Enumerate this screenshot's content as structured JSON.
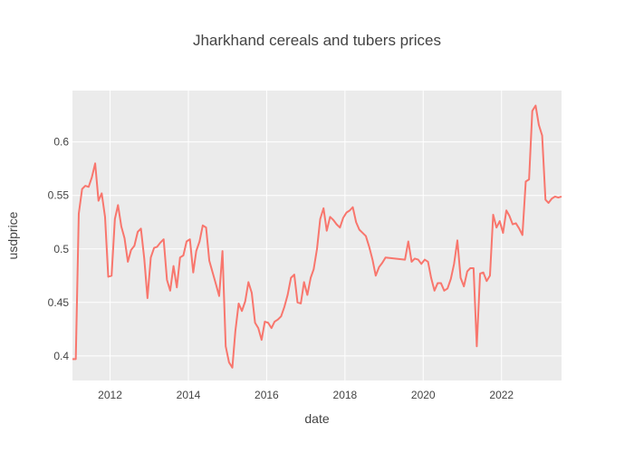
{
  "chart_data": {
    "type": "line",
    "title": "Jharkhand cereals and tubers prices",
    "xlabel": "date",
    "ylabel": "usdprice",
    "xlim": [
      "2011-01-15",
      "2023-07-15"
    ],
    "ylim": [
      0.377,
      0.648
    ],
    "x_ticks": [
      {
        "label": "2012",
        "date": "2012-01-01"
      },
      {
        "label": "2014",
        "date": "2014-01-01"
      },
      {
        "label": "2016",
        "date": "2016-01-01"
      },
      {
        "label": "2018",
        "date": "2018-01-01"
      },
      {
        "label": "2020",
        "date": "2020-01-01"
      },
      {
        "label": "2022",
        "date": "2022-01-01"
      }
    ],
    "y_ticks": [
      {
        "label": "0.4",
        "value": 0.4
      },
      {
        "label": "0.45",
        "value": 0.45
      },
      {
        "label": "0.5",
        "value": 0.5
      },
      {
        "label": "0.55",
        "value": 0.55
      },
      {
        "label": "0.6",
        "value": 0.6
      }
    ],
    "grid": true,
    "background": "#ebebeb",
    "line_color": "#f8766d",
    "series": [
      {
        "points": [
          [
            "2011-01-15",
            0.397
          ],
          [
            "2011-02-15",
            0.397
          ],
          [
            "2011-03-15",
            0.533
          ],
          [
            "2011-04-15",
            0.556
          ],
          [
            "2011-05-15",
            0.559
          ],
          [
            "2011-06-15",
            0.558
          ],
          [
            "2011-07-15",
            0.567
          ],
          [
            "2011-08-15",
            0.58
          ],
          [
            "2011-09-15",
            0.545
          ],
          [
            "2011-10-15",
            0.552
          ],
          [
            "2011-11-15",
            0.53
          ],
          [
            "2011-12-15",
            0.474
          ],
          [
            "2012-01-15",
            0.475
          ],
          [
            "2012-02-15",
            0.528
          ],
          [
            "2012-03-15",
            0.541
          ],
          [
            "2012-04-15",
            0.521
          ],
          [
            "2012-05-15",
            0.51
          ],
          [
            "2012-06-15",
            0.488
          ],
          [
            "2012-07-15",
            0.499
          ],
          [
            "2012-08-15",
            0.503
          ],
          [
            "2012-09-15",
            0.516
          ],
          [
            "2012-10-15",
            0.519
          ],
          [
            "2012-11-15",
            0.491
          ],
          [
            "2012-12-15",
            0.454
          ],
          [
            "2013-01-15",
            0.492
          ],
          [
            "2013-02-15",
            0.501
          ],
          [
            "2013-03-15",
            0.502
          ],
          [
            "2013-04-15",
            0.506
          ],
          [
            "2013-05-15",
            0.509
          ],
          [
            "2013-06-15",
            0.471
          ],
          [
            "2013-07-15",
            0.461
          ],
          [
            "2013-08-15",
            0.484
          ],
          [
            "2013-09-15",
            0.464
          ],
          [
            "2013-10-15",
            0.492
          ],
          [
            "2013-11-15",
            0.494
          ],
          [
            "2013-12-15",
            0.507
          ],
          [
            "2014-01-15",
            0.509
          ],
          [
            "2014-02-15",
            0.478
          ],
          [
            "2014-03-15",
            0.498
          ],
          [
            "2014-04-15",
            0.507
          ],
          [
            "2014-05-15",
            0.522
          ],
          [
            "2014-06-15",
            0.52
          ],
          [
            "2014-07-15",
            0.489
          ],
          [
            "2014-08-15",
            0.478
          ],
          [
            "2014-09-15",
            0.467
          ],
          [
            "2014-10-15",
            0.456
          ],
          [
            "2014-11-15",
            0.498
          ],
          [
            "2014-12-15",
            0.409
          ],
          [
            "2015-01-15",
            0.394
          ],
          [
            "2015-02-15",
            0.389
          ],
          [
            "2015-03-15",
            0.423
          ],
          [
            "2015-04-15",
            0.449
          ],
          [
            "2015-05-15",
            0.442
          ],
          [
            "2015-06-15",
            0.451
          ],
          [
            "2015-07-15",
            0.469
          ],
          [
            "2015-08-15",
            0.459
          ],
          [
            "2015-09-15",
            0.431
          ],
          [
            "2015-10-15",
            0.426
          ],
          [
            "2015-11-15",
            0.415
          ],
          [
            "2015-12-15",
            0.432
          ],
          [
            "2016-01-15",
            0.431
          ],
          [
            "2016-02-15",
            0.426
          ],
          [
            "2016-03-15",
            0.432
          ],
          [
            "2016-04-15",
            0.434
          ],
          [
            "2016-05-15",
            0.437
          ],
          [
            "2016-06-15",
            0.446
          ],
          [
            "2016-07-15",
            0.457
          ],
          [
            "2016-08-15",
            0.473
          ],
          [
            "2016-09-15",
            0.476
          ],
          [
            "2016-10-15",
            0.45
          ],
          [
            "2016-11-15",
            0.449
          ],
          [
            "2016-12-15",
            0.469
          ],
          [
            "2017-01-15",
            0.457
          ],
          [
            "2017-02-15",
            0.473
          ],
          [
            "2017-03-15",
            0.481
          ],
          [
            "2017-04-15",
            0.5
          ],
          [
            "2017-05-15",
            0.528
          ],
          [
            "2017-06-15",
            0.538
          ],
          [
            "2017-07-15",
            0.517
          ],
          [
            "2017-08-15",
            0.53
          ],
          [
            "2017-09-15",
            0.527
          ],
          [
            "2017-10-15",
            0.523
          ],
          [
            "2017-11-15",
            0.52
          ],
          [
            "2017-12-15",
            0.529
          ],
          [
            "2018-01-15",
            0.534
          ],
          [
            "2018-02-15",
            0.536
          ],
          [
            "2018-03-15",
            0.539
          ],
          [
            "2018-04-15",
            0.525
          ],
          [
            "2018-05-15",
            0.518
          ],
          [
            "2018-06-15",
            0.515
          ],
          [
            "2018-07-15",
            0.512
          ],
          [
            "2018-08-15",
            0.502
          ],
          [
            "2018-09-15",
            0.49
          ],
          [
            "2018-10-15",
            0.475
          ],
          [
            "2018-11-15",
            0.483
          ],
          [
            "2018-12-15",
            0.487
          ],
          [
            "2019-01-15",
            0.492
          ],
          [
            "2019-07-15",
            0.49
          ],
          [
            "2019-08-15",
            0.507
          ],
          [
            "2019-09-15",
            0.488
          ],
          [
            "2019-10-15",
            0.491
          ],
          [
            "2019-11-15",
            0.49
          ],
          [
            "2019-12-15",
            0.486
          ],
          [
            "2020-01-15",
            0.49
          ],
          [
            "2020-02-15",
            0.488
          ],
          [
            "2020-03-15",
            0.473
          ],
          [
            "2020-04-15",
            0.461
          ],
          [
            "2020-05-15",
            0.468
          ],
          [
            "2020-06-15",
            0.468
          ],
          [
            "2020-07-15",
            0.461
          ],
          [
            "2020-08-15",
            0.463
          ],
          [
            "2020-09-15",
            0.472
          ],
          [
            "2020-10-15",
            0.486
          ],
          [
            "2020-11-15",
            0.508
          ],
          [
            "2020-12-15",
            0.473
          ],
          [
            "2021-01-15",
            0.465
          ],
          [
            "2021-02-15",
            0.479
          ],
          [
            "2021-03-15",
            0.482
          ],
          [
            "2021-04-15",
            0.482
          ],
          [
            "2021-05-15",
            0.409
          ],
          [
            "2021-06-15",
            0.477
          ],
          [
            "2021-07-15",
            0.478
          ],
          [
            "2021-08-15",
            0.47
          ],
          [
            "2021-09-15",
            0.475
          ],
          [
            "2021-10-15",
            0.532
          ],
          [
            "2021-11-15",
            0.52
          ],
          [
            "2021-12-15",
            0.526
          ],
          [
            "2022-01-15",
            0.515
          ],
          [
            "2022-02-15",
            0.536
          ],
          [
            "2022-03-15",
            0.531
          ],
          [
            "2022-04-15",
            0.523
          ],
          [
            "2022-05-15",
            0.524
          ],
          [
            "2022-06-15",
            0.519
          ],
          [
            "2022-07-15",
            0.513
          ],
          [
            "2022-08-15",
            0.563
          ],
          [
            "2022-09-15",
            0.565
          ],
          [
            "2022-10-15",
            0.629
          ],
          [
            "2022-11-15",
            0.634
          ],
          [
            "2022-12-15",
            0.616
          ],
          [
            "2023-01-15",
            0.606
          ],
          [
            "2023-02-15",
            0.546
          ],
          [
            "2023-03-15",
            0.543
          ],
          [
            "2023-04-15",
            0.547
          ],
          [
            "2023-05-15",
            0.549
          ],
          [
            "2023-06-15",
            0.548
          ],
          [
            "2023-07-15",
            0.549
          ]
        ]
      }
    ]
  }
}
